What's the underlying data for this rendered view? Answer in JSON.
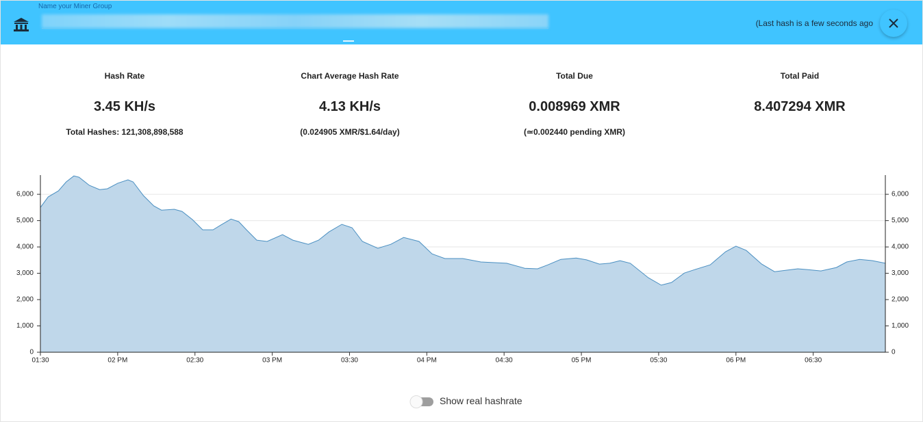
{
  "header": {
    "input_label": "Name your Miner Group",
    "status": "(Last hash is a few seconds ago"
  },
  "stats": [
    {
      "label": "Hash Rate",
      "value": "3.45 KH/s",
      "sub": "Total Hashes: 121,308,898,588"
    },
    {
      "label": "Chart Average Hash Rate",
      "value": "4.13 KH/s",
      "sub": "(0.024905 XMR/$1.64/day)"
    },
    {
      "label": "Total Due",
      "value": "0.008969 XMR",
      "sub": "(≃0.002440 pending XMR)"
    },
    {
      "label": "Total Paid",
      "value": "8.407294 XMR"
    }
  ],
  "toggle_label": "Show real hashrate",
  "chart_data": {
    "type": "area",
    "x": [
      0,
      3,
      7,
      10,
      13,
      15,
      19,
      23,
      26,
      30,
      34,
      36,
      40,
      44,
      47,
      52,
      55,
      59,
      63,
      67,
      70,
      74,
      77,
      80,
      84,
      88,
      94,
      98,
      104,
      108,
      112,
      117,
      121,
      125,
      131,
      136,
      141,
      147,
      152,
      157,
      164,
      171,
      181,
      188,
      193,
      197,
      202,
      208,
      212,
      217,
      221,
      225,
      229,
      236,
      241,
      245,
      250,
      254,
      260,
      266,
      270,
      274,
      280,
      285,
      290,
      294,
      298,
      303,
      309,
      313,
      318,
      323,
      328
    ],
    "series": [
      {
        "color": "#4a8fc1",
        "fill": "#bfd7ea",
        "values": [
          5500,
          5900,
          6130,
          6470,
          6700,
          6650,
          6340,
          6180,
          6210,
          6420,
          6550,
          6470,
          5950,
          5560,
          5400,
          5430,
          5350,
          5040,
          4650,
          4650,
          4830,
          5060,
          4960,
          4650,
          4260,
          4210,
          4470,
          4260,
          4100,
          4260,
          4570,
          4860,
          4730,
          4210,
          3950,
          4100,
          4360,
          4210,
          3740,
          3560,
          3560,
          3430,
          3380,
          3190,
          3170,
          3320,
          3530,
          3580,
          3510,
          3350,
          3380,
          3480,
          3380,
          2830,
          2550,
          2650,
          3010,
          3140,
          3320,
          3820,
          4030,
          3870,
          3350,
          3060,
          3120,
          3170,
          3140,
          3090,
          3220,
          3430,
          3530,
          3480,
          3380
        ]
      }
    ],
    "xlim": [
      0,
      328
    ],
    "xticks": [
      {
        "value": 0,
        "label": "01:30"
      },
      {
        "value": 30,
        "label": "02 PM"
      },
      {
        "value": 60,
        "label": "02:30"
      },
      {
        "value": 90,
        "label": "03 PM"
      },
      {
        "value": 120,
        "label": "03:30"
      },
      {
        "value": 150,
        "label": "04 PM"
      },
      {
        "value": 180,
        "label": "04:30"
      },
      {
        "value": 210,
        "label": "05 PM"
      },
      {
        "value": 240,
        "label": "05:30"
      },
      {
        "value": 270,
        "label": "06 PM"
      },
      {
        "value": 300,
        "label": "06:30"
      }
    ],
    "ylim": [
      0,
      6730
    ],
    "yticks": [
      0,
      {
        "value": 1000,
        "label": "1,000"
      },
      {
        "value": 2000,
        "label": "2,000"
      },
      {
        "value": 3000,
        "label": "3,000"
      },
      {
        "value": 4000,
        "label": "4,000"
      },
      {
        "value": 5000,
        "label": "5,000"
      },
      {
        "value": 6000,
        "label": "6,000"
      }
    ],
    "y2lim": [
      0,
      6730
    ],
    "y2ticks": [
      0,
      {
        "value": 1000,
        "label": "1,000"
      },
      {
        "value": 2000,
        "label": "2,000"
      },
      {
        "value": 3000,
        "label": "3,000"
      },
      {
        "value": 4000,
        "label": "4,000"
      },
      {
        "value": 5000,
        "label": "5,000"
      },
      {
        "value": 6000,
        "label": "6,000"
      }
    ],
    "grid": true
  }
}
